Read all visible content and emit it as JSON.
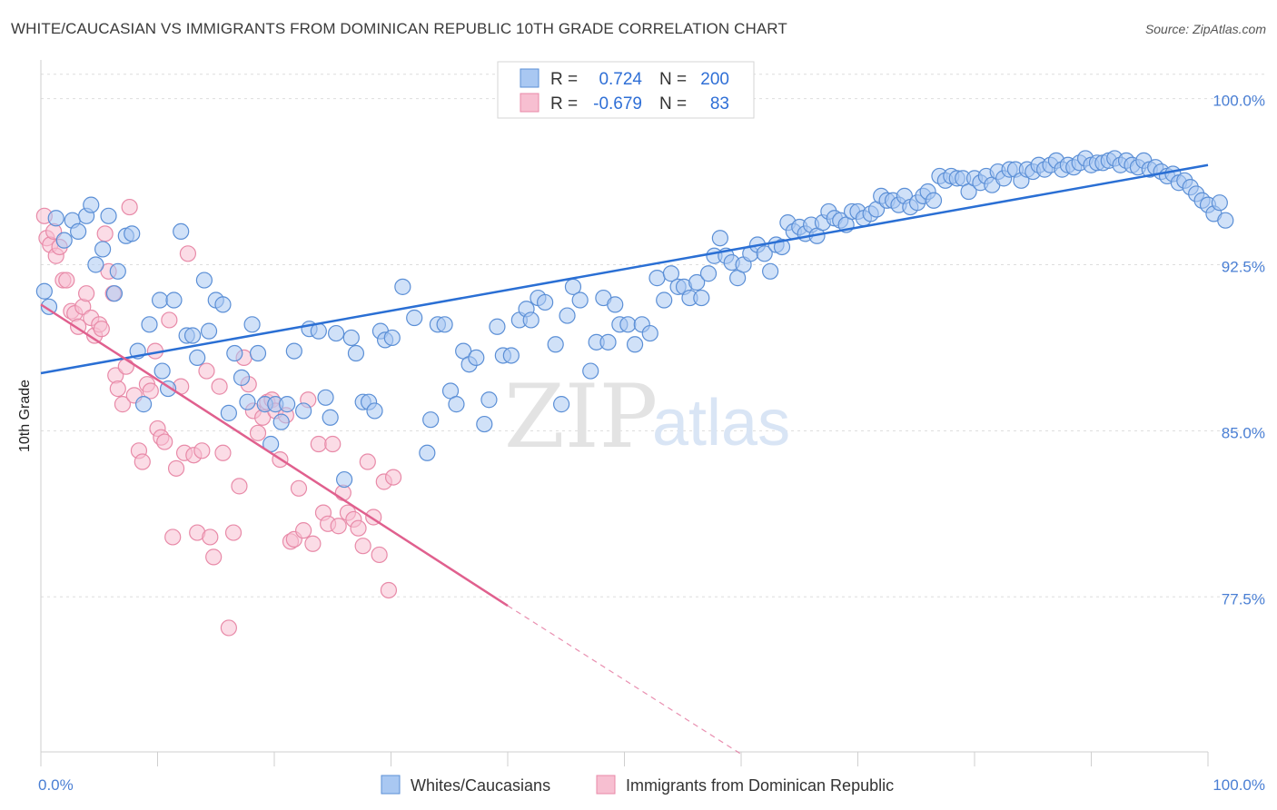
{
  "title": "WHITE/CAUCASIAN VS IMMIGRANTS FROM DOMINICAN REPUBLIC 10TH GRADE CORRELATION CHART",
  "source": "Source: ZipAtlas.com",
  "watermark": {
    "zip": "ZIP",
    "atlas": "atlas"
  },
  "colors": {
    "blue_fill": "#a9c8f2",
    "blue_stroke": "#5b8fd6",
    "blue_line": "#2a6fd4",
    "pink_fill": "#f7bfd1",
    "pink_stroke": "#e88aa8",
    "pink_line": "#e0608e",
    "grid": "#dddddd",
    "axis_text": "#4a7fd4"
  },
  "stats": [
    {
      "r_label": "R =",
      "r_value": "0.724",
      "n_label": "N =",
      "n_value": "200"
    },
    {
      "r_label": "R =",
      "r_value": "-0.679",
      "n_label": "N =",
      "n_value": "83"
    }
  ],
  "chart_data": {
    "type": "scatter",
    "title": "WHITE/CAUCASIAN VS IMMIGRANTS FROM DOMINICAN REPUBLIC 10TH GRADE CORRELATION CHART",
    "xlabel": "",
    "ylabel": "10th Grade",
    "xlim": [
      0,
      100
    ],
    "ylim": [
      70.5,
      101.5
    ],
    "x_tick_labels": [
      "0.0%",
      "100.0%"
    ],
    "y_ticks": [
      77.5,
      85.0,
      92.5,
      100.0
    ],
    "y_tick_labels": [
      "77.5%",
      "85.0%",
      "92.5%",
      "100.0%"
    ],
    "grid": "horizontal dashed",
    "legend_position": "bottom",
    "series": [
      {
        "name": "Whites/Caucasians",
        "color": "#a9c8f2",
        "trend": {
          "x": [
            0,
            100
          ],
          "y": [
            87.6,
            97.0
          ],
          "style": "solid"
        },
        "points": [
          [
            0.3,
            91.3
          ],
          [
            0.7,
            90.6
          ],
          [
            1.3,
            94.6
          ],
          [
            2.0,
            93.6
          ],
          [
            2.7,
            94.5
          ],
          [
            3.2,
            94.0
          ],
          [
            3.9,
            94.7
          ],
          [
            4.3,
            95.2
          ],
          [
            4.7,
            92.5
          ],
          [
            5.3,
            93.2
          ],
          [
            5.8,
            94.7
          ],
          [
            6.3,
            91.2
          ],
          [
            6.6,
            92.2
          ],
          [
            7.3,
            93.8
          ],
          [
            7.8,
            93.9
          ],
          [
            8.3,
            88.6
          ],
          [
            8.8,
            86.2
          ],
          [
            9.3,
            89.8
          ],
          [
            10.2,
            90.9
          ],
          [
            10.4,
            87.7
          ],
          [
            10.9,
            86.9
          ],
          [
            11.4,
            90.9
          ],
          [
            12.0,
            94.0
          ],
          [
            12.5,
            89.3
          ],
          [
            13.0,
            89.3
          ],
          [
            13.4,
            88.3
          ],
          [
            14.0,
            91.8
          ],
          [
            14.4,
            89.5
          ],
          [
            15.0,
            90.9
          ],
          [
            15.6,
            90.7
          ],
          [
            16.1,
            85.8
          ],
          [
            16.6,
            88.5
          ],
          [
            17.2,
            87.4
          ],
          [
            17.7,
            86.3
          ],
          [
            18.1,
            89.8
          ],
          [
            18.6,
            88.5
          ],
          [
            19.2,
            86.2
          ],
          [
            19.7,
            84.4
          ],
          [
            20.1,
            86.2
          ],
          [
            20.6,
            85.4
          ],
          [
            21.1,
            86.2
          ],
          [
            21.7,
            88.6
          ],
          [
            22.5,
            85.9
          ],
          [
            23.0,
            89.6
          ],
          [
            23.8,
            89.5
          ],
          [
            24.4,
            86.5
          ],
          [
            24.8,
            85.6
          ],
          [
            25.3,
            89.4
          ],
          [
            26.0,
            82.8
          ],
          [
            26.6,
            89.2
          ],
          [
            27.0,
            88.5
          ],
          [
            27.6,
            86.3
          ],
          [
            28.1,
            86.3
          ],
          [
            28.6,
            85.9
          ],
          [
            29.1,
            89.5
          ],
          [
            29.5,
            89.1
          ],
          [
            30.1,
            89.2
          ],
          [
            31.0,
            91.5
          ],
          [
            32.0,
            90.1
          ],
          [
            33.1,
            84.0
          ],
          [
            33.4,
            85.5
          ],
          [
            34.0,
            89.8
          ],
          [
            34.6,
            89.8
          ],
          [
            35.1,
            86.8
          ],
          [
            35.6,
            86.2
          ],
          [
            36.2,
            88.6
          ],
          [
            36.7,
            88.0
          ],
          [
            37.3,
            88.3
          ],
          [
            38.0,
            85.3
          ],
          [
            38.4,
            86.4
          ],
          [
            39.1,
            89.7
          ],
          [
            39.6,
            88.4
          ],
          [
            40.3,
            88.4
          ],
          [
            41.0,
            90.0
          ],
          [
            41.6,
            90.5
          ],
          [
            42.0,
            90.0
          ],
          [
            42.6,
            91.0
          ],
          [
            43.2,
            90.8
          ],
          [
            44.1,
            88.9
          ],
          [
            44.6,
            86.2
          ],
          [
            45.1,
            90.2
          ],
          [
            45.6,
            91.5
          ],
          [
            46.2,
            90.9
          ],
          [
            47.1,
            87.7
          ],
          [
            47.6,
            89.0
          ],
          [
            48.2,
            91.0
          ],
          [
            48.6,
            89.0
          ],
          [
            49.2,
            90.7
          ],
          [
            49.6,
            89.8
          ],
          [
            50.3,
            89.8
          ],
          [
            50.9,
            88.9
          ],
          [
            51.5,
            89.8
          ],
          [
            52.2,
            89.4
          ],
          [
            52.8,
            91.9
          ],
          [
            53.4,
            90.9
          ],
          [
            54.0,
            92.1
          ],
          [
            54.6,
            91.5
          ],
          [
            55.1,
            91.5
          ],
          [
            55.6,
            91.0
          ],
          [
            56.2,
            91.7
          ],
          [
            56.6,
            91.0
          ],
          [
            57.2,
            92.1
          ],
          [
            57.7,
            92.9
          ],
          [
            58.2,
            93.7
          ],
          [
            58.7,
            92.9
          ],
          [
            59.2,
            92.6
          ],
          [
            59.7,
            91.9
          ],
          [
            60.2,
            92.5
          ],
          [
            60.8,
            93.0
          ],
          [
            61.4,
            93.4
          ],
          [
            62.0,
            93.0
          ],
          [
            62.5,
            92.2
          ],
          [
            63.0,
            93.4
          ],
          [
            63.5,
            93.3
          ],
          [
            64.0,
            94.4
          ],
          [
            64.5,
            94.0
          ],
          [
            65.0,
            94.2
          ],
          [
            65.5,
            93.9
          ],
          [
            66.0,
            94.3
          ],
          [
            66.5,
            93.8
          ],
          [
            67.0,
            94.4
          ],
          [
            67.5,
            94.9
          ],
          [
            68.0,
            94.6
          ],
          [
            68.5,
            94.5
          ],
          [
            69.0,
            94.3
          ],
          [
            69.5,
            94.9
          ],
          [
            70.0,
            94.9
          ],
          [
            70.5,
            94.6
          ],
          [
            71.1,
            94.8
          ],
          [
            71.6,
            95.0
          ],
          [
            72.0,
            95.6
          ],
          [
            72.5,
            95.4
          ],
          [
            73.0,
            95.4
          ],
          [
            73.5,
            95.2
          ],
          [
            74.0,
            95.6
          ],
          [
            74.5,
            95.1
          ],
          [
            75.1,
            95.3
          ],
          [
            75.6,
            95.6
          ],
          [
            76.0,
            95.8
          ],
          [
            76.5,
            95.4
          ],
          [
            77.0,
            96.5
          ],
          [
            77.5,
            96.3
          ],
          [
            78.0,
            96.5
          ],
          [
            78.5,
            96.4
          ],
          [
            79.0,
            96.4
          ],
          [
            79.5,
            95.8
          ],
          [
            80.0,
            96.4
          ],
          [
            80.5,
            96.2
          ],
          [
            81.0,
            96.5
          ],
          [
            81.5,
            96.1
          ],
          [
            82.0,
            96.7
          ],
          [
            82.5,
            96.4
          ],
          [
            83.0,
            96.8
          ],
          [
            83.5,
            96.8
          ],
          [
            84.0,
            96.3
          ],
          [
            84.5,
            96.8
          ],
          [
            85.0,
            96.7
          ],
          [
            85.5,
            97.0
          ],
          [
            86.0,
            96.8
          ],
          [
            86.5,
            97.0
          ],
          [
            87.0,
            97.2
          ],
          [
            87.5,
            96.8
          ],
          [
            88.0,
            97.0
          ],
          [
            88.5,
            96.9
          ],
          [
            89.0,
            97.1
          ],
          [
            89.5,
            97.3
          ],
          [
            90.0,
            97.0
          ],
          [
            90.5,
            97.1
          ],
          [
            91.0,
            97.1
          ],
          [
            91.5,
            97.2
          ],
          [
            92.0,
            97.3
          ],
          [
            92.5,
            97.0
          ],
          [
            93.0,
            97.2
          ],
          [
            93.5,
            97.0
          ],
          [
            94.0,
            96.9
          ],
          [
            94.5,
            97.2
          ],
          [
            95.0,
            96.8
          ],
          [
            95.5,
            96.9
          ],
          [
            96.0,
            96.7
          ],
          [
            96.5,
            96.5
          ],
          [
            97.0,
            96.6
          ],
          [
            97.5,
            96.2
          ],
          [
            98.0,
            96.3
          ],
          [
            98.5,
            96.0
          ],
          [
            99.0,
            95.7
          ],
          [
            99.5,
            95.4
          ],
          [
            100.0,
            95.2
          ],
          [
            100.5,
            94.8
          ],
          [
            101.0,
            95.3
          ],
          [
            101.5,
            94.5
          ]
        ]
      },
      {
        "name": "Immigrants from Dominican Republic",
        "color": "#f7bfd1",
        "trend": {
          "x": [
            0,
            40
          ],
          "y": [
            90.7,
            77.1
          ],
          "style": "solid",
          "extension": {
            "x": [
              40,
              60
            ],
            "y": [
              77.1,
              70.4
            ],
            "style": "dashed"
          }
        },
        "points": [
          [
            0.3,
            94.7
          ],
          [
            0.5,
            93.7
          ],
          [
            0.8,
            93.4
          ],
          [
            1.1,
            94.0
          ],
          [
            1.3,
            92.9
          ],
          [
            1.6,
            93.3
          ],
          [
            1.9,
            91.8
          ],
          [
            2.2,
            91.8
          ],
          [
            2.6,
            90.4
          ],
          [
            2.9,
            90.3
          ],
          [
            3.2,
            89.7
          ],
          [
            3.6,
            90.6
          ],
          [
            3.9,
            91.2
          ],
          [
            4.3,
            90.1
          ],
          [
            4.6,
            89.3
          ],
          [
            5.0,
            89.8
          ],
          [
            5.2,
            89.6
          ],
          [
            5.5,
            93.9
          ],
          [
            5.8,
            92.2
          ],
          [
            6.2,
            91.2
          ],
          [
            6.4,
            87.5
          ],
          [
            6.6,
            86.9
          ],
          [
            7.0,
            86.2
          ],
          [
            7.3,
            87.9
          ],
          [
            7.6,
            95.1
          ],
          [
            8.0,
            86.6
          ],
          [
            8.4,
            84.1
          ],
          [
            8.7,
            83.6
          ],
          [
            9.1,
            87.1
          ],
          [
            9.4,
            86.8
          ],
          [
            9.8,
            88.6
          ],
          [
            10.0,
            85.1
          ],
          [
            10.3,
            84.7
          ],
          [
            10.6,
            84.5
          ],
          [
            11.0,
            90.0
          ],
          [
            11.3,
            80.2
          ],
          [
            11.6,
            83.3
          ],
          [
            12.0,
            87.0
          ],
          [
            12.3,
            84.0
          ],
          [
            12.6,
            93.0
          ],
          [
            13.1,
            83.9
          ],
          [
            13.4,
            80.4
          ],
          [
            13.8,
            84.1
          ],
          [
            14.2,
            87.7
          ],
          [
            14.5,
            80.2
          ],
          [
            14.8,
            79.3
          ],
          [
            15.3,
            87.0
          ],
          [
            15.6,
            84.0
          ],
          [
            16.1,
            76.1
          ],
          [
            16.5,
            80.4
          ],
          [
            17.0,
            82.5
          ],
          [
            17.4,
            88.3
          ],
          [
            17.8,
            87.1
          ],
          [
            18.2,
            85.9
          ],
          [
            18.6,
            84.9
          ],
          [
            19.0,
            85.6
          ],
          [
            19.4,
            86.3
          ],
          [
            19.8,
            86.4
          ],
          [
            20.1,
            85.9
          ],
          [
            20.5,
            83.7
          ],
          [
            21.0,
            85.7
          ],
          [
            21.4,
            80.0
          ],
          [
            21.7,
            80.1
          ],
          [
            22.1,
            82.4
          ],
          [
            22.5,
            80.5
          ],
          [
            22.9,
            86.4
          ],
          [
            23.3,
            79.9
          ],
          [
            23.8,
            84.4
          ],
          [
            24.2,
            81.3
          ],
          [
            24.6,
            80.8
          ],
          [
            25.0,
            84.4
          ],
          [
            25.5,
            80.7
          ],
          [
            25.9,
            82.2
          ],
          [
            26.3,
            81.3
          ],
          [
            26.8,
            81.0
          ],
          [
            27.2,
            80.6
          ],
          [
            27.6,
            79.8
          ],
          [
            28.0,
            83.6
          ],
          [
            28.5,
            81.1
          ],
          [
            29.0,
            79.4
          ],
          [
            29.4,
            82.7
          ],
          [
            29.8,
            77.8
          ],
          [
            30.2,
            82.9
          ]
        ]
      }
    ]
  },
  "legend": [
    "Whites/Caucasians",
    "Immigrants from Dominican Republic"
  ]
}
